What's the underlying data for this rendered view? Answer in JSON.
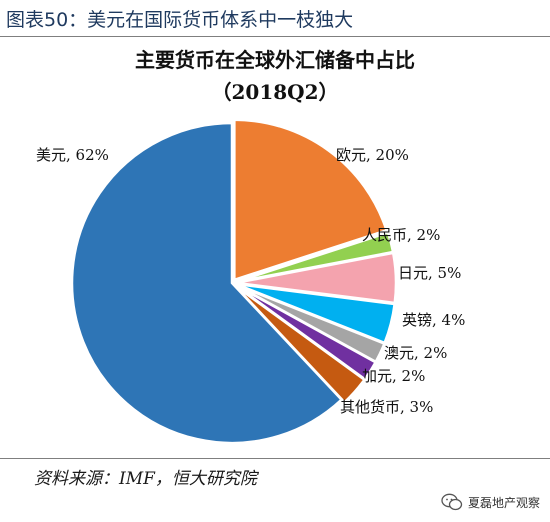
{
  "figure": {
    "label": "图表50：美元在国际货币体系中一枝独大"
  },
  "source": "资料来源：IMF，恒大研究院",
  "watermark": "夏磊地产观察",
  "chart_data": {
    "type": "pie",
    "title": "主要货币在全球外汇储备中占比",
    "subtitle": "（2018Q2）",
    "slices": [
      {
        "name": "欧元",
        "value": 20,
        "label": "欧元, 20%",
        "color": "#ED7D31"
      },
      {
        "name": "人民币",
        "value": 2,
        "label": "人民币, 2%",
        "color": "#92D050"
      },
      {
        "name": "日元",
        "value": 5,
        "label": "日元, 5%",
        "color": "#F4A3AE"
      },
      {
        "name": "英镑",
        "value": 4,
        "label": "英镑, 4%",
        "color": "#00B0F0"
      },
      {
        "name": "澳元",
        "value": 2,
        "label": "澳元, 2%",
        "color": "#A5A5A5"
      },
      {
        "name": "加元",
        "value": 2,
        "label": "加元, 2%",
        "color": "#7030A0"
      },
      {
        "name": "其他货币",
        "value": 3,
        "label": "其他货币, 3%",
        "color": "#C55A11"
      },
      {
        "name": "美元",
        "value": 62,
        "label": "美元, 62%",
        "color": "#2E75B6"
      }
    ]
  }
}
